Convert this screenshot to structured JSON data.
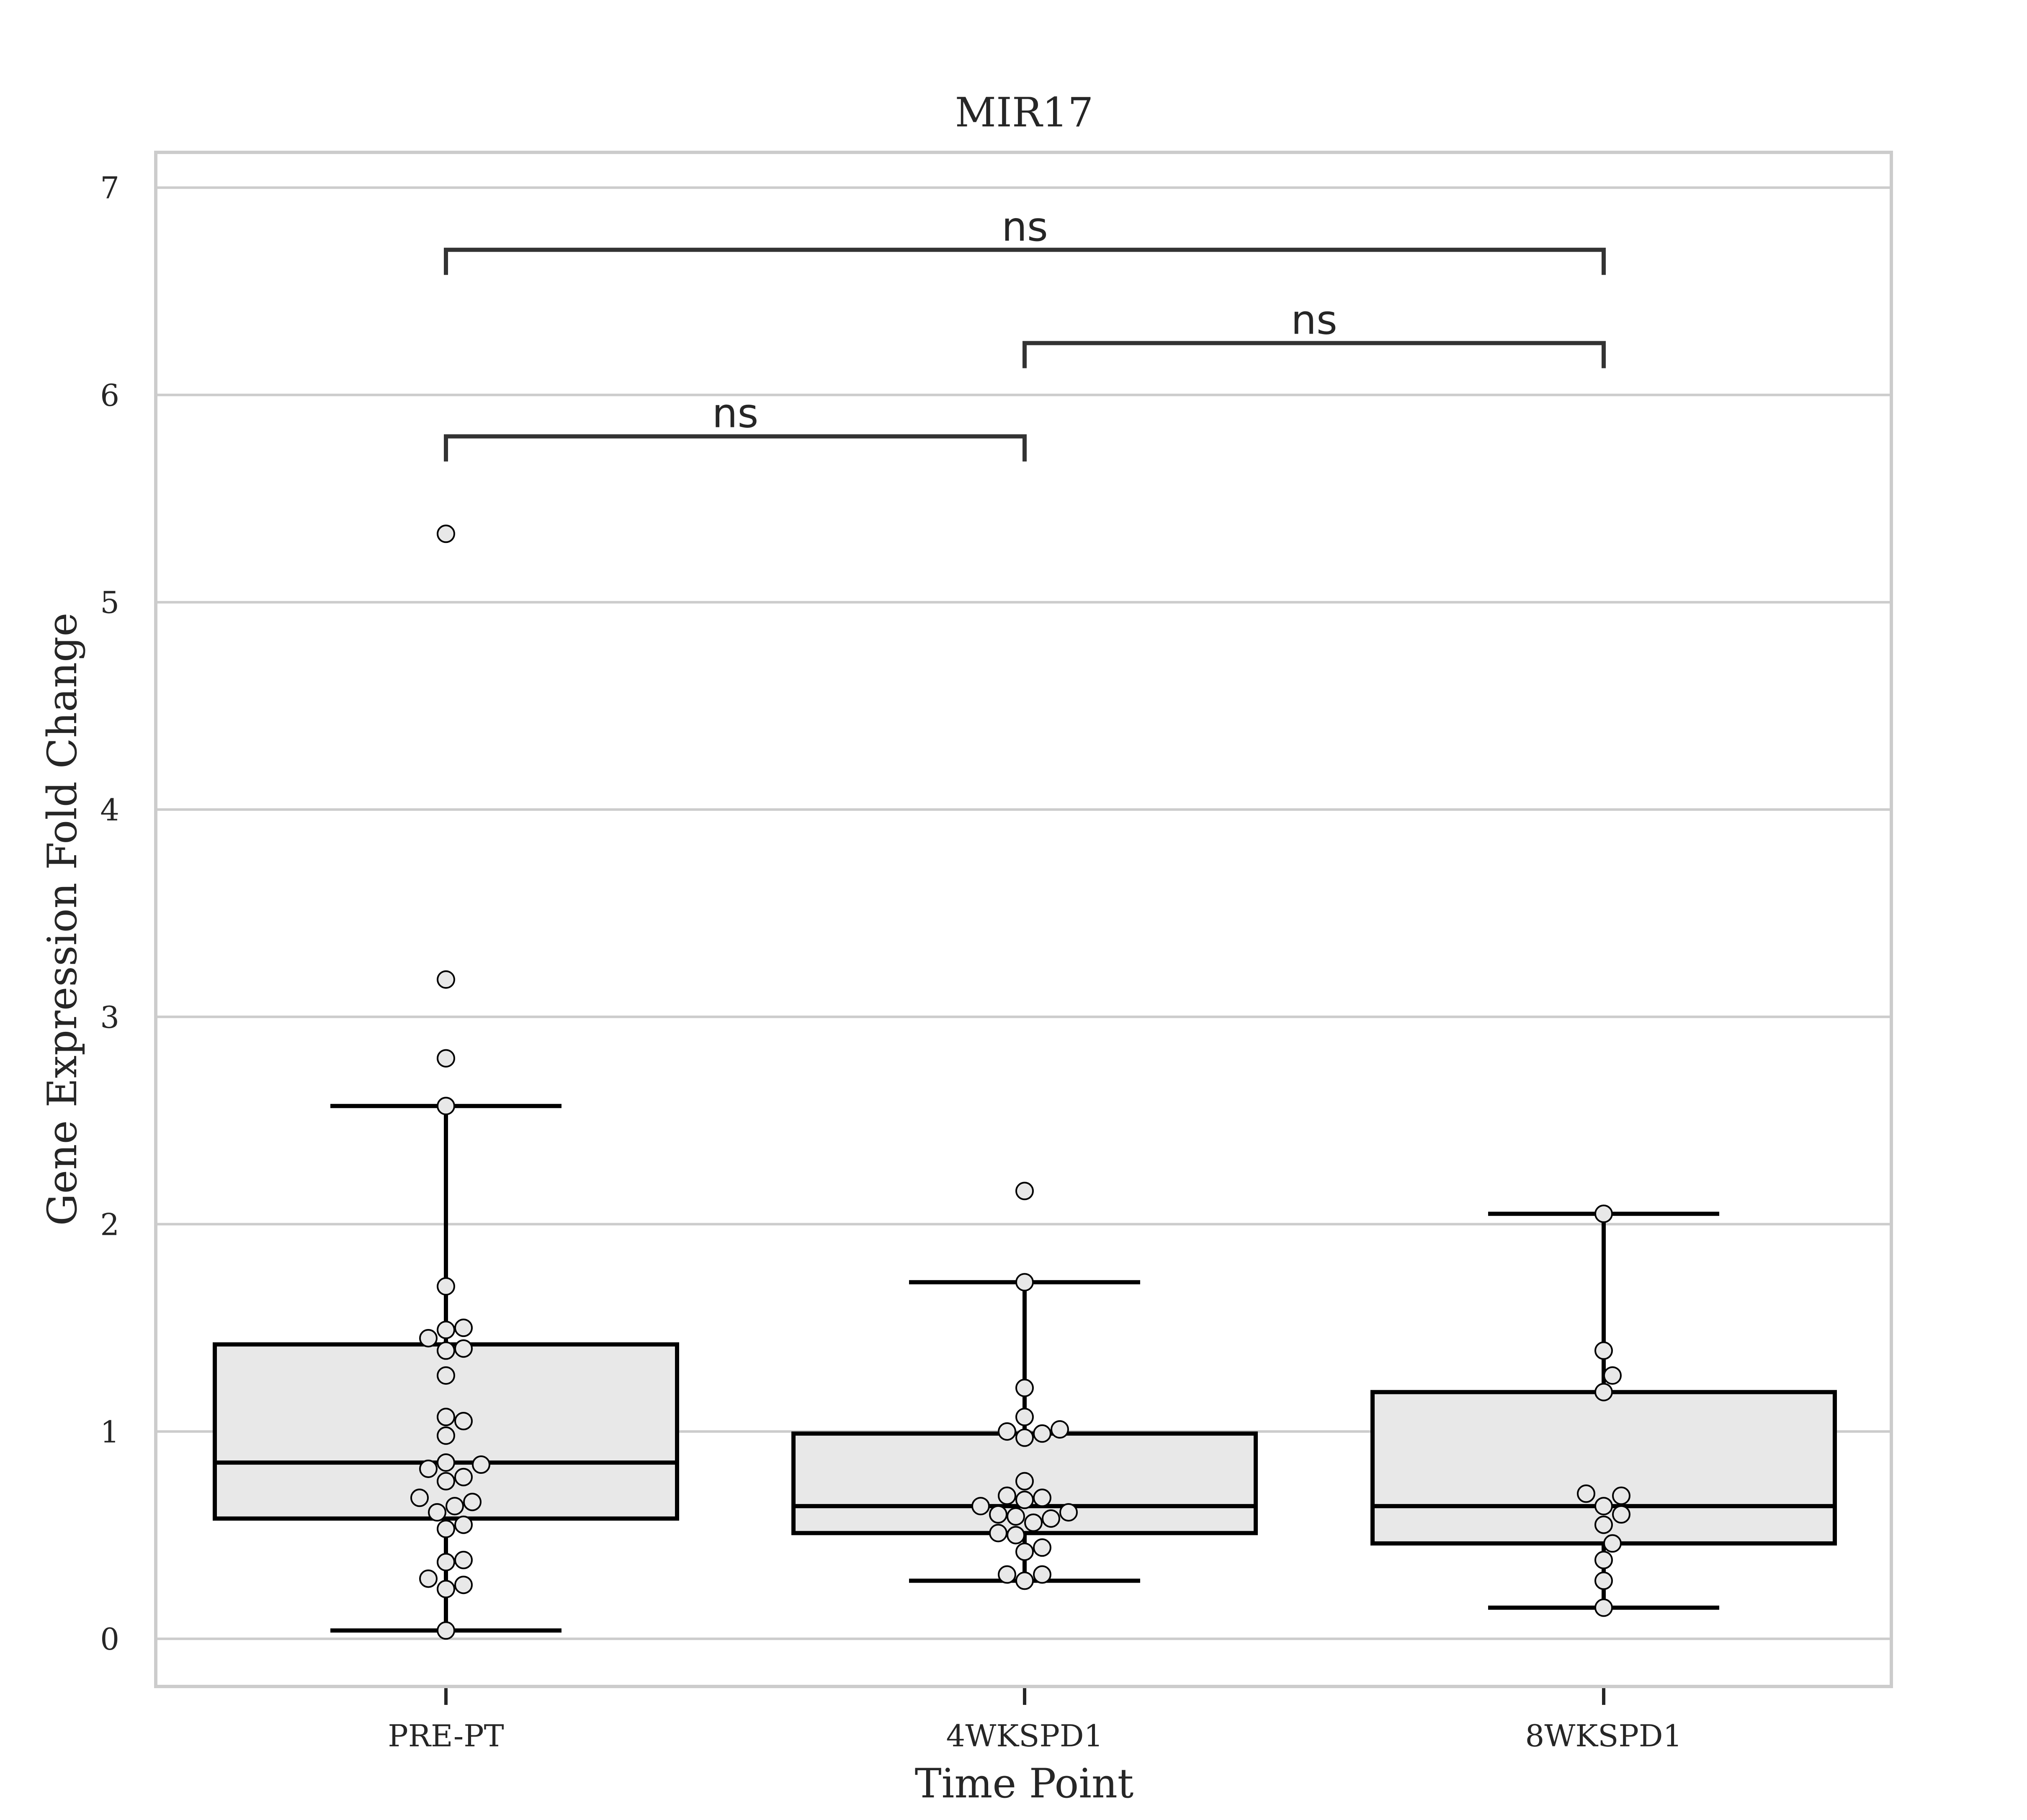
{
  "chart_data": {
    "type": "box",
    "title": "MIR17",
    "xlabel": "Time Point",
    "ylabel": "Gene Expression Fold Change",
    "categories": [
      "PRE-PT",
      "4WKSPD1",
      "8WKSPD1"
    ],
    "ylim": [
      -0.23,
      7.17
    ],
    "yticks": [
      0,
      1,
      2,
      3,
      4,
      5,
      6,
      7
    ],
    "grid": "horizontal",
    "box_fill": "#e8e8e8",
    "boxes": [
      {
        "category": "PRE-PT",
        "whisker_low": 0.04,
        "q1": 0.58,
        "median": 0.85,
        "q3": 1.42,
        "whisker_high": 2.57
      },
      {
        "category": "4WKSPD1",
        "whisker_low": 0.28,
        "q1": 0.51,
        "median": 0.64,
        "q3": 0.99,
        "whisker_high": 1.72
      },
      {
        "category": "8WKSPD1",
        "whisker_low": 0.15,
        "q1": 0.46,
        "median": 0.64,
        "q3": 1.19,
        "whisker_high": 2.05
      }
    ],
    "points": [
      {
        "category": "PRE-PT",
        "values": [
          5.33,
          3.18,
          2.8,
          2.57,
          1.7,
          1.5,
          1.49,
          1.45,
          1.4,
          1.39,
          1.27,
          1.07,
          1.05,
          0.98,
          0.85,
          0.84,
          0.82,
          0.78,
          0.76,
          0.68,
          0.66,
          0.64,
          0.61,
          0.55,
          0.53,
          0.38,
          0.37,
          0.29,
          0.26,
          0.24,
          0.04
        ]
      },
      {
        "category": "4WKSPD1",
        "values": [
          2.16,
          1.72,
          1.21,
          1.07,
          1.01,
          1.0,
          0.99,
          0.97,
          0.76,
          0.69,
          0.68,
          0.67,
          0.64,
          0.61,
          0.6,
          0.59,
          0.58,
          0.56,
          0.51,
          0.5,
          0.44,
          0.42,
          0.31,
          0.31,
          0.28
        ]
      },
      {
        "category": "8WKSPD1",
        "values": [
          2.05,
          1.39,
          1.27,
          1.19,
          0.7,
          0.69,
          0.64,
          0.6,
          0.55,
          0.46,
          0.38,
          0.28,
          0.15
        ]
      }
    ],
    "annotations": [
      {
        "from": "PRE-PT",
        "to": "4WKSPD1",
        "y": 5.8,
        "label": "ns"
      },
      {
        "from": "4WKSPD1",
        "to": "8WKSPD1",
        "y": 6.25,
        "label": "ns"
      },
      {
        "from": "PRE-PT",
        "to": "8WKSPD1",
        "y": 6.7,
        "label": "ns"
      }
    ]
  }
}
